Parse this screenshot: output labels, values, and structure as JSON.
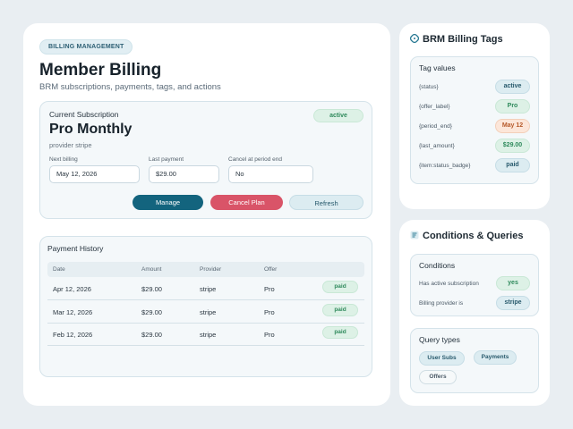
{
  "header": {
    "badge": "BILLING MANAGEMENT",
    "title": "Member Billing",
    "subtitle": "BRM subscriptions, payments, tags, and actions"
  },
  "subscription": {
    "panel_title": "Current Subscription",
    "status": "active",
    "plan": "Pro Monthly",
    "provider": "provider stripe",
    "fields": [
      {
        "label": "Next billing",
        "value": "May 12, 2026"
      },
      {
        "label": "Last payment",
        "value": "$29.00"
      },
      {
        "label": "Cancel at period end",
        "value": "No"
      }
    ],
    "buttons": {
      "manage": "Manage",
      "cancel": "Cancel Plan",
      "refresh": "Refresh"
    }
  },
  "history": {
    "panel_title": "Payment History",
    "columns": [
      "Date",
      "Amount",
      "Provider",
      "Offer"
    ],
    "rows": [
      {
        "date": "Apr 12, 2026",
        "amount": "$29.00",
        "provider": "stripe",
        "offer": "Pro",
        "status": "paid"
      },
      {
        "date": "Mar 12, 2026",
        "amount": "$29.00",
        "provider": "stripe",
        "offer": "Pro",
        "status": "paid"
      },
      {
        "date": "Feb 12, 2026",
        "amount": "$29.00",
        "provider": "stripe",
        "offer": "Pro",
        "status": "paid"
      }
    ]
  },
  "tags": {
    "title": "BRM Billing Tags",
    "icon": "tag-icon",
    "panel_title": "Tag values",
    "items": [
      {
        "key": "{status}",
        "value": "active",
        "color": "#dcecf1"
      },
      {
        "key": "{offer_label}",
        "value": "Pro",
        "color": "#ddf1e6"
      },
      {
        "key": "{period_end}",
        "value": "May 12",
        "color": "#fce6d9"
      },
      {
        "key": "{last_amount}",
        "value": "$29.00",
        "color": "#ddf1e6"
      },
      {
        "key": "{item:status_badge}",
        "value": "paid",
        "color": "#dcecf1"
      }
    ]
  },
  "conditions": {
    "title": "Conditions & Queries",
    "icon": "filter-list-icon",
    "panel_title": "Conditions",
    "items": [
      {
        "key": "Has active subscription",
        "value": "yes"
      },
      {
        "key": "Billing provider is",
        "value": "stripe"
      }
    ],
    "query_title": "Query types",
    "queries": [
      "User Subs",
      "Payments",
      "Offers"
    ]
  },
  "colors": {
    "accent": "#13647e",
    "danger": "#d95468",
    "success": "#2f8a5c",
    "background": "#e9eef2"
  }
}
